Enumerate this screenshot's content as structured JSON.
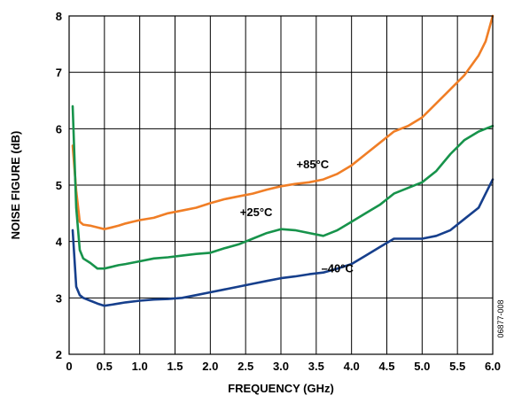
{
  "chart_data": {
    "type": "line",
    "title": "",
    "xlabel": "FREQUENCY (GHz)",
    "ylabel": "NOISE FIGURE (dB)",
    "xlim": [
      0,
      6
    ],
    "ylim": [
      2,
      8
    ],
    "grid": true,
    "x_ticks": [
      "0",
      "0.5",
      "1.0",
      "1.5",
      "2.0",
      "2.5",
      "3.0",
      "3.5",
      "4.0",
      "4.5",
      "5.0",
      "5.5",
      "6.0"
    ],
    "y_ticks": [
      "2",
      "3",
      "4",
      "5",
      "6",
      "7",
      "8"
    ],
    "figure_code": "06877-008",
    "series": [
      {
        "name": "+85°C",
        "color": "#f07e26",
        "label_pos": [
          3.45,
          5.3
        ],
        "x": [
          0.05,
          0.1,
          0.15,
          0.2,
          0.3,
          0.4,
          0.5,
          0.6,
          0.7,
          0.8,
          0.9,
          1.0,
          1.2,
          1.4,
          1.6,
          1.8,
          2.0,
          2.2,
          2.4,
          2.6,
          2.8,
          3.0,
          3.2,
          3.4,
          3.6,
          3.8,
          4.0,
          4.2,
          4.4,
          4.6,
          4.8,
          5.0,
          5.2,
          5.4,
          5.6,
          5.8,
          5.9,
          6.0
        ],
        "y": [
          5.7,
          4.9,
          4.35,
          4.3,
          4.28,
          4.25,
          4.22,
          4.25,
          4.28,
          4.32,
          4.35,
          4.38,
          4.42,
          4.5,
          4.55,
          4.6,
          4.68,
          4.75,
          4.8,
          4.85,
          4.92,
          4.98,
          5.02,
          5.05,
          5.1,
          5.2,
          5.35,
          5.55,
          5.75,
          5.95,
          6.05,
          6.2,
          6.45,
          6.7,
          6.95,
          7.3,
          7.55,
          8.0
        ]
      },
      {
        "name": "+25°C",
        "color": "#17934b",
        "label_pos": [
          2.65,
          4.45
        ],
        "x": [
          0.05,
          0.1,
          0.15,
          0.2,
          0.3,
          0.4,
          0.5,
          0.6,
          0.7,
          0.8,
          1.0,
          1.2,
          1.4,
          1.6,
          1.8,
          2.0,
          2.2,
          2.4,
          2.6,
          2.8,
          3.0,
          3.2,
          3.4,
          3.6,
          3.8,
          4.0,
          4.2,
          4.4,
          4.6,
          4.8,
          5.0,
          5.2,
          5.4,
          5.6,
          5.8,
          6.0
        ],
        "y": [
          6.4,
          4.6,
          3.85,
          3.7,
          3.62,
          3.52,
          3.52,
          3.55,
          3.58,
          3.6,
          3.65,
          3.7,
          3.72,
          3.75,
          3.78,
          3.8,
          3.88,
          3.95,
          4.05,
          4.15,
          4.22,
          4.2,
          4.15,
          4.1,
          4.2,
          4.35,
          4.5,
          4.65,
          4.85,
          4.95,
          5.05,
          5.25,
          5.55,
          5.8,
          5.95,
          6.05
        ]
      },
      {
        "name": "–40°C",
        "color": "#163f8c",
        "label_pos": [
          3.8,
          3.45
        ],
        "x": [
          0.05,
          0.1,
          0.15,
          0.2,
          0.3,
          0.4,
          0.5,
          0.6,
          0.7,
          0.8,
          1.0,
          1.2,
          1.4,
          1.6,
          1.8,
          2.0,
          2.2,
          2.4,
          2.6,
          2.8,
          3.0,
          3.2,
          3.4,
          3.6,
          3.8,
          4.0,
          4.2,
          4.4,
          4.6,
          4.8,
          5.0,
          5.2,
          5.4,
          5.6,
          5.8,
          5.9,
          6.0
        ],
        "y": [
          4.2,
          3.2,
          3.05,
          3.0,
          2.95,
          2.9,
          2.86,
          2.88,
          2.9,
          2.92,
          2.95,
          2.97,
          2.98,
          3.0,
          3.05,
          3.1,
          3.15,
          3.2,
          3.25,
          3.3,
          3.35,
          3.38,
          3.42,
          3.45,
          3.52,
          3.6,
          3.75,
          3.9,
          4.05,
          4.05,
          4.05,
          4.1,
          4.2,
          4.4,
          4.6,
          4.85,
          5.1
        ]
      }
    ]
  }
}
